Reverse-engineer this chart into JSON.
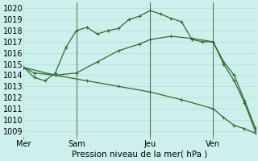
{
  "background_color": "#cdf0ed",
  "grid_color": "#b0ddd8",
  "line_color": "#2d6b2d",
  "title": "Pression niveau de la mer( hPa )",
  "ylim": [
    1008.5,
    1020.5
  ],
  "yticks": [
    1009,
    1010,
    1011,
    1012,
    1013,
    1014,
    1015,
    1016,
    1017,
    1018,
    1019,
    1020
  ],
  "xlim": [
    0,
    22
  ],
  "x_day_labels": [
    {
      "label": "Mer",
      "x": 0
    },
    {
      "label": "Sam",
      "x": 5
    },
    {
      "label": "Jeu",
      "x": 12
    },
    {
      "label": "Ven",
      "x": 18
    }
  ],
  "line1": {
    "x": [
      0,
      1,
      2,
      3,
      4,
      5,
      6,
      7,
      8,
      9,
      10,
      11,
      12,
      13,
      14,
      15,
      16,
      17,
      18,
      19,
      20,
      21,
      22
    ],
    "y": [
      1014.7,
      1013.8,
      1013.5,
      1014.2,
      1016.5,
      1018.0,
      1018.3,
      1017.7,
      1018.0,
      1018.2,
      1019.0,
      1019.3,
      1019.8,
      1019.5,
      1019.1,
      1018.8,
      1017.2,
      1017.0,
      1017.0,
      1015.2,
      1014.0,
      1011.7,
      1009.3
    ]
  },
  "line2": {
    "x": [
      0,
      1,
      3,
      5,
      7,
      9,
      11,
      12,
      14,
      16,
      18,
      19,
      20,
      21,
      22
    ],
    "y": [
      1014.7,
      1014.2,
      1014.0,
      1014.2,
      1015.2,
      1016.2,
      1016.8,
      1017.2,
      1017.5,
      1017.3,
      1017.0,
      1015.0,
      1013.5,
      1011.5,
      1009.0
    ]
  },
  "line3": {
    "x": [
      0,
      3,
      6,
      9,
      12,
      15,
      18,
      19,
      20,
      21,
      22
    ],
    "y": [
      1014.7,
      1014.0,
      1013.5,
      1013.0,
      1012.5,
      1011.8,
      1011.0,
      1010.2,
      1009.5,
      1009.2,
      1008.8
    ]
  },
  "vlines": [
    5,
    12,
    18
  ]
}
